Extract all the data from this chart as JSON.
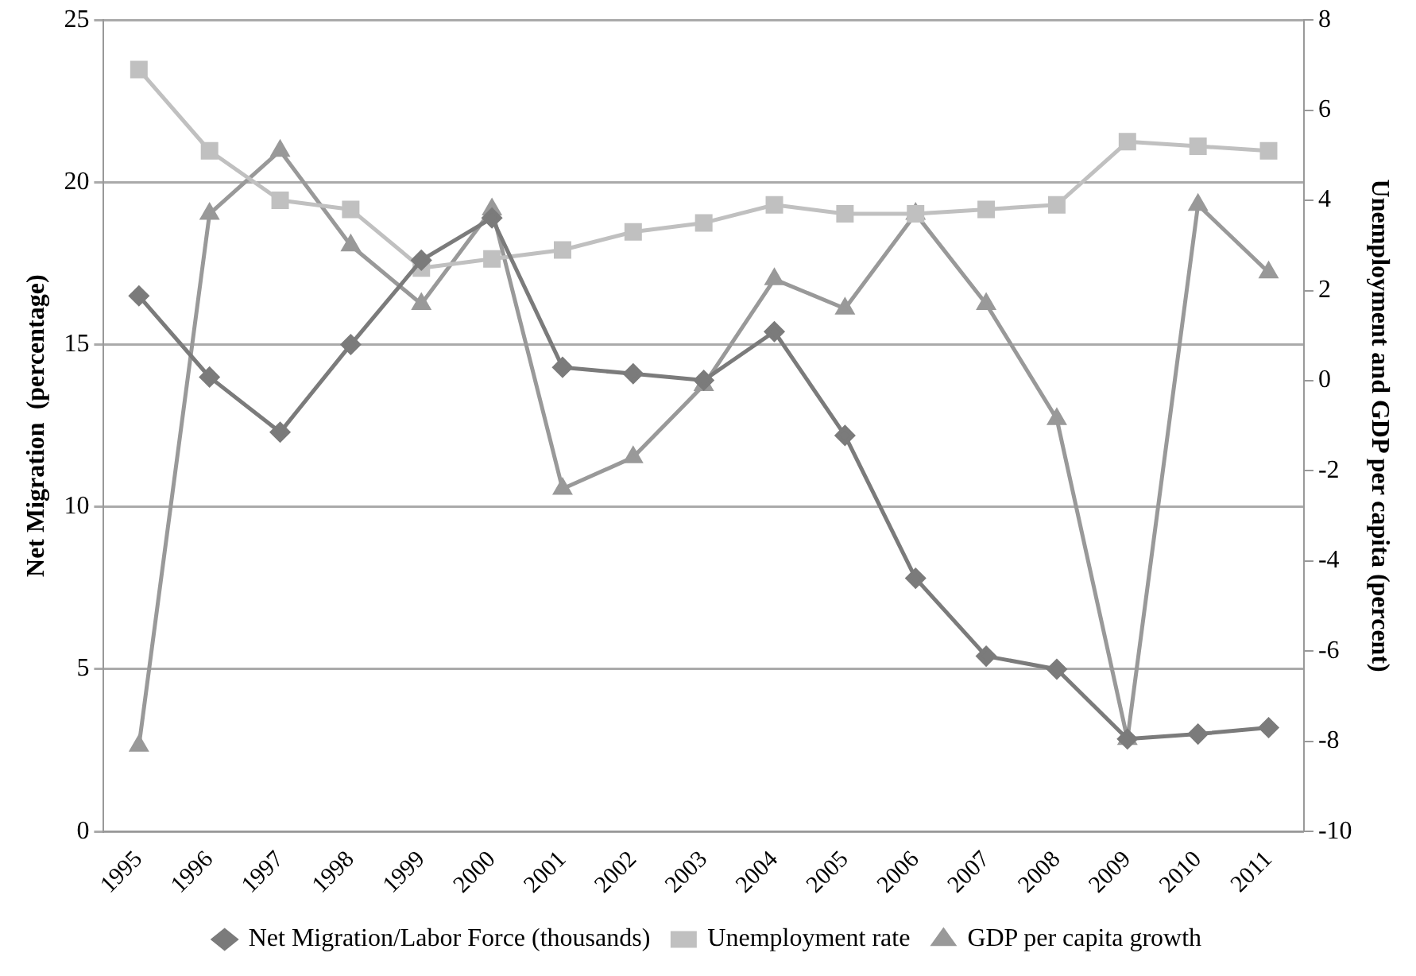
{
  "chart_data": {
    "type": "line",
    "ylabel": "Net Migration  (percentage)",
    "y2label": "Unemployment and GDP per capita (percent)",
    "categories": [
      "1995",
      "1996",
      "1997",
      "1998",
      "1999",
      "2000",
      "2001",
      "2002",
      "2003",
      "2004",
      "2005",
      "2006",
      "2007",
      "2008",
      "2009",
      "2010",
      "2011"
    ],
    "series": [
      {
        "name": "Net Migration/Labor Force (thousands)",
        "color": "#7b7b7b",
        "marker": "diamond",
        "values": [
          16.5,
          14.0,
          12.3,
          15.0,
          17.6,
          18.9,
          14.3,
          14.1,
          13.9,
          15.4,
          12.2,
          7.8,
          5.4,
          5.0,
          2.85,
          3.0,
          3.2
        ]
      },
      {
        "name": "Unemployment rate",
        "color": "#c0c0c0",
        "marker": "square",
        "axis": "y2",
        "values": [
          6.9,
          5.1,
          4.0,
          3.8,
          2.5,
          2.7,
          2.9,
          3.3,
          3.5,
          3.9,
          3.7,
          3.7,
          3.8,
          3.9,
          5.3,
          5.2,
          5.1
        ]
      },
      {
        "name": "GDP per capita growth",
        "color": "#999999",
        "marker": "triangle",
        "axis": "y2",
        "values": [
          -8.1,
          3.7,
          5.1,
          3.0,
          1.7,
          3.8,
          -2.4,
          -1.7,
          -0.1,
          2.25,
          1.6,
          3.7,
          1.7,
          -0.85,
          -7.95,
          3.9,
          2.4
        ]
      }
    ],
    "ylim": [
      0,
      25
    ],
    "yticks": [
      0,
      5,
      10,
      15,
      20,
      25
    ],
    "y2lim": [
      -10,
      8
    ],
    "y2ticks": [
      -10,
      -8,
      -6,
      -4,
      -2,
      0,
      2,
      4,
      6,
      8
    ],
    "grid": "y",
    "legend": "bottom",
    "line_style": "solid"
  }
}
